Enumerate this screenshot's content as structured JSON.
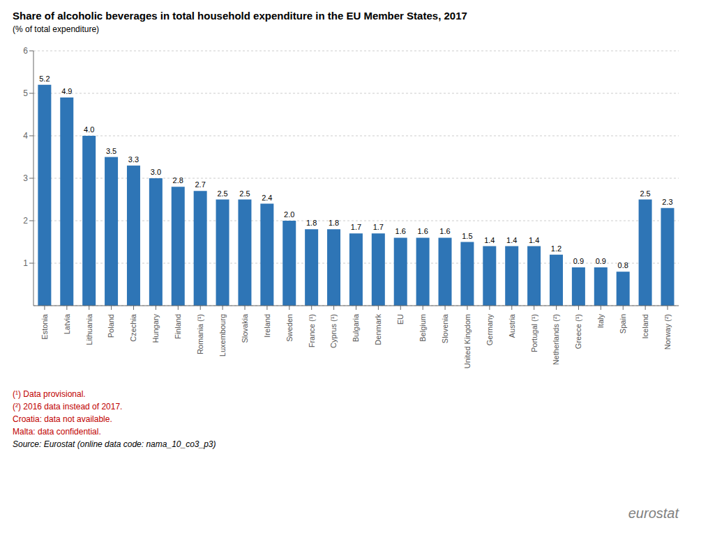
{
  "chart_data": {
    "type": "bar",
    "title": "Share of alcoholic beverages in total household expenditure in the EU Member States, 2017",
    "subtitle": "(% of total expenditure)",
    "categories": [
      "Estonia",
      "Latvia",
      "Lithuania",
      "Poland",
      "Czechia",
      "Hungary",
      "Finland",
      "Romania (¹)",
      "Luxembourg",
      "Slovakia",
      "Ireland",
      "Sweden",
      "France (¹)",
      "Cyprus (¹)",
      "Bulgaria",
      "Denmark",
      "EU",
      "Belgium",
      "Slovenia",
      "United Kingdom",
      "Germany",
      "Austria",
      "Portugal (¹)",
      "Netherlands (²)",
      "Greece (¹)",
      "Italy",
      "Spain",
      "Iceland",
      "Norway (²)"
    ],
    "values": [
      5.2,
      4.9,
      4.0,
      3.5,
      3.3,
      3.0,
      2.8,
      2.7,
      2.5,
      2.5,
      2.4,
      2.0,
      1.8,
      1.8,
      1.7,
      1.7,
      1.6,
      1.6,
      1.6,
      1.5,
      1.4,
      1.4,
      1.4,
      1.2,
      0.9,
      0.9,
      0.8,
      2.5,
      2.3
    ],
    "value_labels": [
      "5.2",
      "4.9",
      "4.0",
      "3.5",
      "3.3",
      "3.0",
      "2.8",
      "2.7",
      "2.5",
      "2.5",
      "2.4",
      "2.0",
      "1.8",
      "1.8",
      "1.7",
      "1.7",
      "1.6",
      "1.6",
      "1.6",
      "1.5",
      "1.4",
      "1.4",
      "1.4",
      "1.2",
      "0.9",
      "0.9",
      "0.8",
      "2.5",
      "2.3"
    ],
    "color": "#2E75B6",
    "ylim": [
      0,
      6
    ],
    "yticks": [
      1,
      2,
      3,
      4,
      5,
      6
    ],
    "grid": true,
    "data_labels": true,
    "annotations": [
      {
        "text": "(¹) Data provisional.",
        "color": "#C00000"
      },
      {
        "text": "(²) 2016 data instead of 2017.",
        "color": "#C00000"
      },
      {
        "text": "Croatia: data not available.",
        "color": "#C00000"
      },
      {
        "text": "Malta: data confidential.",
        "color": "#C00000"
      },
      {
        "text": "Source: Eurostat (online data code: nama_10_co3_p3)",
        "color": "#000000"
      },
      {
        "text": "eurostat",
        "color": "#808080"
      }
    ]
  }
}
